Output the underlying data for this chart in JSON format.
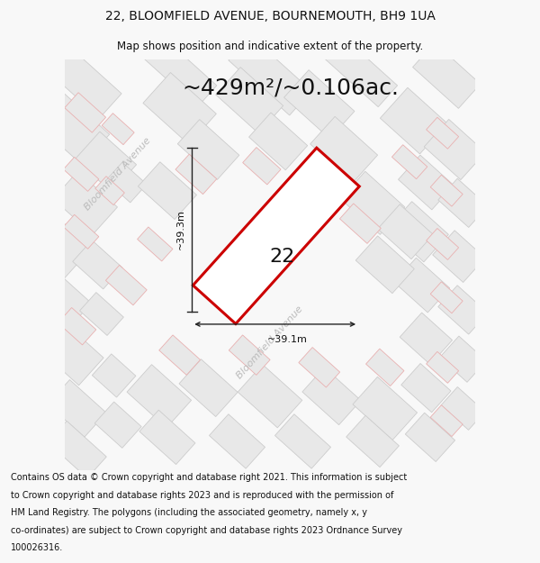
{
  "title_line1": "22, BLOOMFIELD AVENUE, BOURNEMOUTH, BH9 1UA",
  "title_line2": "Map shows position and indicative extent of the property.",
  "area_text": "~429m²/~0.106ac.",
  "number_label": "22",
  "dim_horizontal": "~39.1m",
  "dim_vertical": "~39.3m",
  "street_label_upper": "Bloomfield Avenue",
  "street_label_lower": "Bloomfield Avenue",
  "footer_lines": [
    "Contains OS data © Crown copyright and database right 2021. This information is subject",
    "to Crown copyright and database rights 2023 and is reproduced with the permission of",
    "HM Land Registry. The polygons (including the associated geometry, namely x, y",
    "co-ordinates) are subject to Crown copyright and database rights 2023 Ordnance Survey",
    "100026316."
  ],
  "bg_color": "#f8f8f8",
  "map_bg": "#ffffff",
  "tile_fc": "#e8e8e8",
  "tile_ec_gray": "#cccccc",
  "tile_ec_pink": "#e8b0b0",
  "highlight_edge": "#cc0000",
  "highlight_fill": "#ffffff",
  "dim_line_color": "#222222",
  "text_color_dark": "#111111",
  "street_label_color": "#bbbbbb",
  "title_fontsize": 10,
  "subtitle_fontsize": 8.5,
  "area_fontsize": 18,
  "number_fontsize": 16,
  "dim_fontsize": 8,
  "street_fontsize": 8,
  "footer_fontsize": 7
}
